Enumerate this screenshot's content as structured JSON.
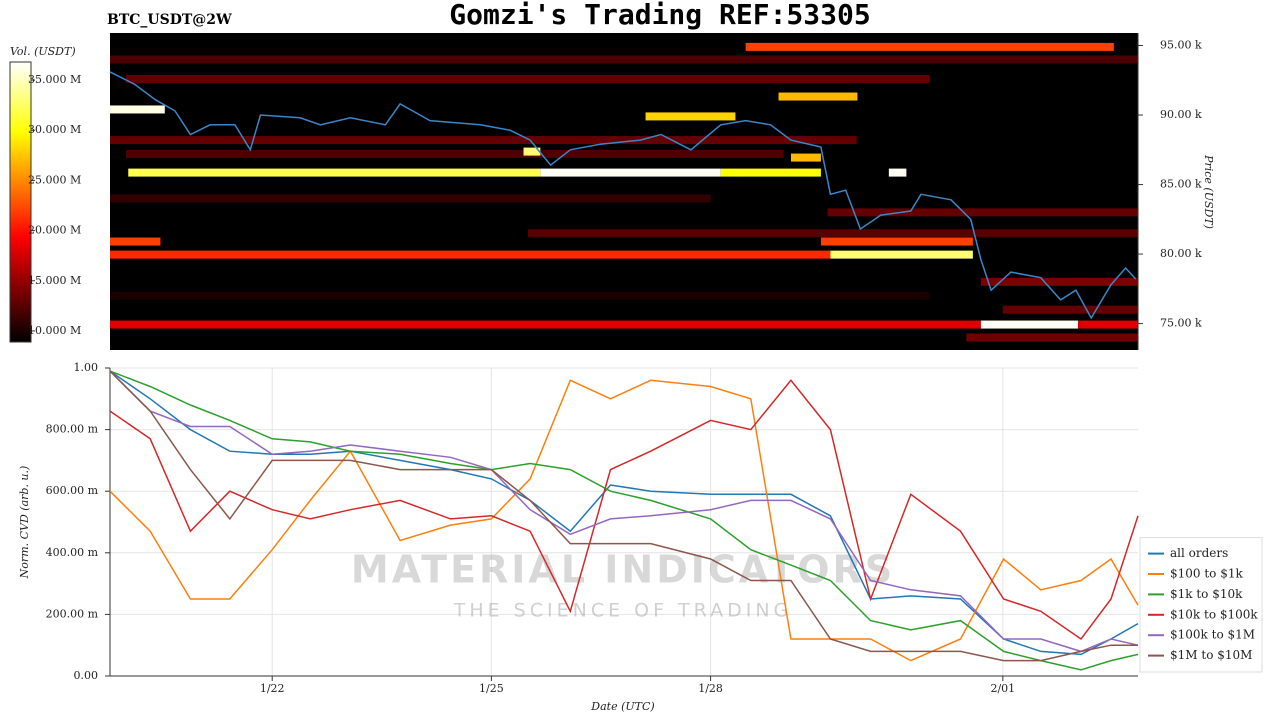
{
  "chart_data": [
    {
      "type": "heatmap",
      "title": "Gomzi's Trading REF:53305",
      "subtitle": "BTC_USDT@2W",
      "ylabel": "Price (USDT)",
      "colorbar_label": "Vol. (USDT)",
      "colormap": "hot",
      "xlim": [
        19.78,
        33.85
      ],
      "ylim": [
        73100,
        95900
      ],
      "yticks": [
        {
          "value": 75000,
          "label": "75.00 k"
        },
        {
          "value": 80000,
          "label": "80.00 k"
        },
        {
          "value": 85000,
          "label": "85.00 k"
        },
        {
          "value": 90000,
          "label": "90.00 k"
        },
        {
          "value": 95000,
          "label": "95.00 k"
        }
      ],
      "clim": [
        8900000,
        36800000
      ],
      "cticks": [
        {
          "value": 10000000,
          "label": "10.000 M"
        },
        {
          "value": 15000000,
          "label": "15.000 M"
        },
        {
          "value": 20000000,
          "label": "20.000 M"
        },
        {
          "value": 25000000,
          "label": "25.000 M"
        },
        {
          "value": 30000000,
          "label": "30.000 M"
        },
        {
          "value": 35000000,
          "label": "35.000 M"
        }
      ],
      "bands": [
        {
          "price": 94000,
          "x0": 19.78,
          "x1": 33.85,
          "volume": 12000000
        },
        {
          "price": 92600,
          "x0": 20.0,
          "x1": 31.0,
          "volume": 13000000
        },
        {
          "price": 88200,
          "x0": 19.78,
          "x1": 30.0,
          "volume": 13000000
        },
        {
          "price": 87200,
          "x0": 20.0,
          "x1": 29.0,
          "volume": 12000000
        },
        {
          "price": 84000,
          "x0": 19.78,
          "x1": 28.0,
          "volume": 11000000
        },
        {
          "price": 83000,
          "x0": 29.6,
          "x1": 33.85,
          "volume": 13000000
        },
        {
          "price": 81500,
          "x0": 25.5,
          "x1": 33.85,
          "volume": 12500000
        },
        {
          "price": 78000,
          "x0": 31.7,
          "x1": 33.85,
          "volume": 14000000
        },
        {
          "price": 77000,
          "x0": 19.78,
          "x1": 31.0,
          "volume": 10000000
        },
        {
          "price": 76000,
          "x0": 32.0,
          "x1": 33.85,
          "volume": 13000000
        },
        {
          "price": 74000,
          "x0": 31.5,
          "x1": 33.85,
          "volume": 13500000
        },
        {
          "price": 94900,
          "x0": 28.48,
          "x1": 33.52,
          "volume": 22000000
        },
        {
          "price": 85860,
          "x0": 20.03,
          "x1": 25.67,
          "volume": 32000000
        },
        {
          "price": 85860,
          "x0": 25.67,
          "x1": 28.14,
          "volume": 36500000
        },
        {
          "price": 85860,
          "x0": 28.14,
          "x1": 29.51,
          "volume": 30000000
        },
        {
          "price": 79960,
          "x0": 19.78,
          "x1": 29.64,
          "volume": 21000000
        },
        {
          "price": 79960,
          "x0": 29.64,
          "x1": 31.59,
          "volume": 33000000
        },
        {
          "price": 80900,
          "x0": 19.78,
          "x1": 20.47,
          "volume": 22000000
        },
        {
          "price": 80900,
          "x0": 29.51,
          "x1": 31.59,
          "volume": 22000000
        },
        {
          "price": 74930,
          "x0": 19.78,
          "x1": 31.7,
          "volume": 18000000
        },
        {
          "price": 74930,
          "x0": 31.7,
          "x1": 33.03,
          "volume": 36500000
        },
        {
          "price": 74930,
          "x0": 33.03,
          "x1": 33.85,
          "volume": 18000000
        },
        {
          "price": 90400,
          "x0": 19.78,
          "x1": 20.53,
          "volume": 36000000
        },
        {
          "price": 89900,
          "x0": 27.11,
          "x1": 28.34,
          "volume": 28000000
        },
        {
          "price": 91330,
          "x0": 28.93,
          "x1": 30.01,
          "volume": 27000000
        },
        {
          "price": 86940,
          "x0": 29.1,
          "x1": 29.51,
          "volume": 27000000
        },
        {
          "price": 87370,
          "x0": 25.44,
          "x1": 25.67,
          "volume": 33000000
        },
        {
          "price": 85860,
          "x0": 30.44,
          "x1": 30.68,
          "volume": 36500000
        }
      ],
      "price": {
        "color": "#3a87c8",
        "x": [
          19.78,
          20.12,
          20.4,
          20.67,
          20.88,
          21.15,
          21.49,
          21.7,
          21.84,
          22.38,
          22.66,
          23.07,
          23.55,
          23.75,
          24.16,
          24.85,
          25.26,
          25.53,
          25.81,
          26.08,
          26.49,
          27.04,
          27.32,
          27.73,
          28.14,
          28.48,
          28.82,
          29.1,
          29.51,
          29.64,
          29.85,
          30.05,
          30.33,
          30.74,
          30.88,
          31.29,
          31.56,
          31.7,
          31.84,
          32.11,
          32.52,
          32.79,
          33.0,
          33.21,
          33.48,
          33.68,
          33.82
        ],
        "values": [
          93100,
          92200,
          91100,
          90300,
          88600,
          89300,
          89300,
          87500,
          90000,
          89800,
          89300,
          89800,
          89300,
          90800,
          89600,
          89300,
          88900,
          88200,
          86400,
          87500,
          87900,
          88200,
          88600,
          87500,
          89300,
          89600,
          89300,
          88200,
          87700,
          84300,
          84600,
          81800,
          82800,
          83100,
          84300,
          83900,
          82500,
          79600,
          77400,
          78700,
          78300,
          76700,
          77400,
          75400,
          77800,
          79000,
          78200
        ]
      }
    },
    {
      "type": "line",
      "xlabel": "Date (UTC)",
      "ylabel": "Norm. CVD (arb. u.)",
      "grid": true,
      "legend": "lower right",
      "annotations": [
        "MATERIAL INDICATORS",
        "THE SCIENCE OF TRADING"
      ],
      "xlim": [
        19.78,
        33.85
      ],
      "ylim": [
        0,
        1
      ],
      "xticks": [
        {
          "value": 22,
          "label": "1/22"
        },
        {
          "value": 25,
          "label": "1/25"
        },
        {
          "value": 28,
          "label": "1/28"
        },
        {
          "value": 32,
          "label": "2/01"
        }
      ],
      "yticks": [
        {
          "value": 0,
          "label": "0.00"
        },
        {
          "value": 0.2,
          "label": "200.00 m"
        },
        {
          "value": 0.4,
          "label": "400.00 m"
        },
        {
          "value": 0.6,
          "label": "600.00 m"
        },
        {
          "value": 0.8,
          "label": "800.00 m"
        },
        {
          "value": 1,
          "label": "1.00"
        }
      ],
      "x": [
        19.78,
        20.33,
        20.88,
        21.42,
        22,
        22.52,
        23.07,
        23.75,
        24.44,
        25,
        25.53,
        26.08,
        26.63,
        27.18,
        28,
        28.55,
        29.1,
        29.64,
        30.19,
        30.74,
        31.42,
        32.01,
        32.52,
        33.07,
        33.48,
        33.85
      ],
      "series": [
        {
          "name": "all orders",
          "color": "#1f77b4",
          "values": [
            0.99,
            0.9,
            0.8,
            0.73,
            0.72,
            0.72,
            0.73,
            0.7,
            0.67,
            0.64,
            0.57,
            0.47,
            0.62,
            0.6,
            0.59,
            0.59,
            0.59,
            0.52,
            0.25,
            0.26,
            0.25,
            0.12,
            0.08,
            0.07,
            0.12,
            0.17
          ]
        },
        {
          "name": "$100 to $1k",
          "color": "#ff7f0e",
          "values": [
            0.6,
            0.47,
            0.25,
            0.25,
            0.41,
            0.57,
            0.73,
            0.44,
            0.49,
            0.51,
            0.64,
            0.96,
            0.9,
            0.96,
            0.94,
            0.9,
            0.12,
            0.12,
            0.12,
            0.05,
            0.12,
            0.38,
            0.28,
            0.31,
            0.38,
            0.23
          ]
        },
        {
          "name": "$1k to $10k",
          "color": "#2ca02c",
          "values": [
            0.99,
            0.94,
            0.88,
            0.83,
            0.77,
            0.76,
            0.73,
            0.72,
            0.69,
            0.67,
            0.69,
            0.67,
            0.6,
            0.57,
            0.51,
            0.41,
            0.36,
            0.31,
            0.18,
            0.15,
            0.18,
            0.08,
            0.05,
            0.02,
            0.05,
            0.07
          ]
        },
        {
          "name": "$10k to $100k",
          "color": "#d62728",
          "values": [
            0.86,
            0.77,
            0.47,
            0.6,
            0.54,
            0.51,
            0.54,
            0.57,
            0.51,
            0.52,
            0.47,
            0.21,
            0.67,
            0.73,
            0.83,
            0.8,
            0.96,
            0.8,
            0.25,
            0.59,
            0.47,
            0.25,
            0.21,
            0.12,
            0.25,
            0.52
          ]
        },
        {
          "name": "$100k to $1M",
          "color": "#9467bd",
          "values": [
            0.99,
            0.86,
            0.81,
            0.81,
            0.72,
            0.73,
            0.75,
            0.73,
            0.71,
            0.67,
            0.54,
            0.46,
            0.51,
            0.52,
            0.54,
            0.57,
            0.57,
            0.51,
            0.31,
            0.28,
            0.26,
            0.12,
            0.12,
            0.08,
            0.12,
            0.1
          ]
        },
        {
          "name": "$1M to $10M",
          "color": "#8c564b",
          "values": [
            0.99,
            0.86,
            0.67,
            0.51,
            0.7,
            0.7,
            0.7,
            0.67,
            0.67,
            0.67,
            0.57,
            0.43,
            0.43,
            0.43,
            0.38,
            0.31,
            0.31,
            0.12,
            0.08,
            0.08,
            0.08,
            0.05,
            0.05,
            0.08,
            0.1,
            0.1
          ]
        }
      ]
    }
  ]
}
